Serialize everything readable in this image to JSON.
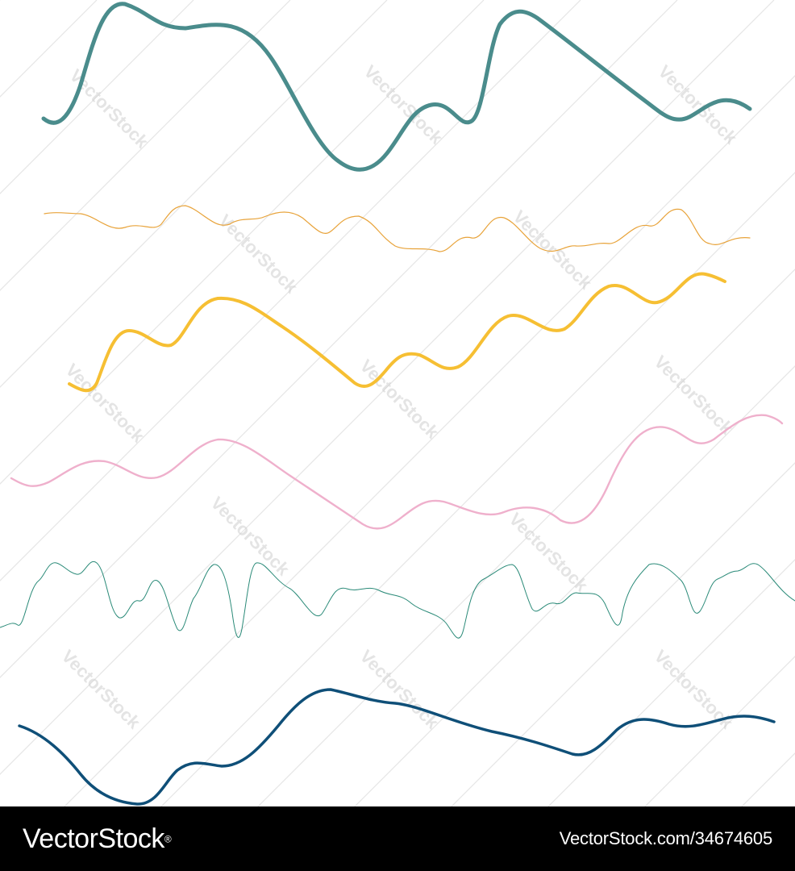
{
  "watermark": {
    "text": "VectorStock",
    "color": "#cfcfcf"
  },
  "waves": [
    {
      "name": "wave-teal-thick",
      "color": "#4a8c8c"
    },
    {
      "name": "wave-orange-thin",
      "color": "#e8a33a"
    },
    {
      "name": "wave-yellow",
      "color": "#f6bf33"
    },
    {
      "name": "wave-pink",
      "color": "#efb0cc"
    },
    {
      "name": "wave-green-thin",
      "color": "#2a8a78"
    },
    {
      "name": "wave-navy",
      "color": "#0f4f78"
    }
  ],
  "footer": {
    "brand": "VectorStock",
    "superscript": "®",
    "image_id": "VectorStock.com/34674605",
    "background": "#000000",
    "text_color": "#ffffff"
  }
}
